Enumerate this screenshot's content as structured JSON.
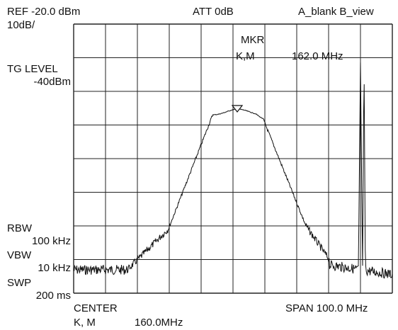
{
  "header": {
    "ref": "REF -20.0 dBm",
    "att": "ATT 0dB",
    "trace_mode": "A_blank B_view",
    "scale": "10dB/"
  },
  "tg": {
    "label": "TG LEVEL",
    "value": "-40dBm"
  },
  "marker": {
    "title": "MKR",
    "mode": "K,M",
    "frequency": "162.0 MHz"
  },
  "bandwidth": {
    "rbw_label": "RBW",
    "rbw_value": "100 kHz",
    "vbw_label": "VBW",
    "vbw_value": "10 kHz",
    "swp_label": "SWP",
    "swp_value": "200 ms"
  },
  "footer": {
    "center_label": "CENTER",
    "center_mode": "K, M",
    "center_value": "160.0MHz",
    "span": "SPAN 100.0 MHz"
  },
  "colors": {
    "trace": "#111111",
    "grid": "#222222",
    "background": "#ffffff"
  }
}
